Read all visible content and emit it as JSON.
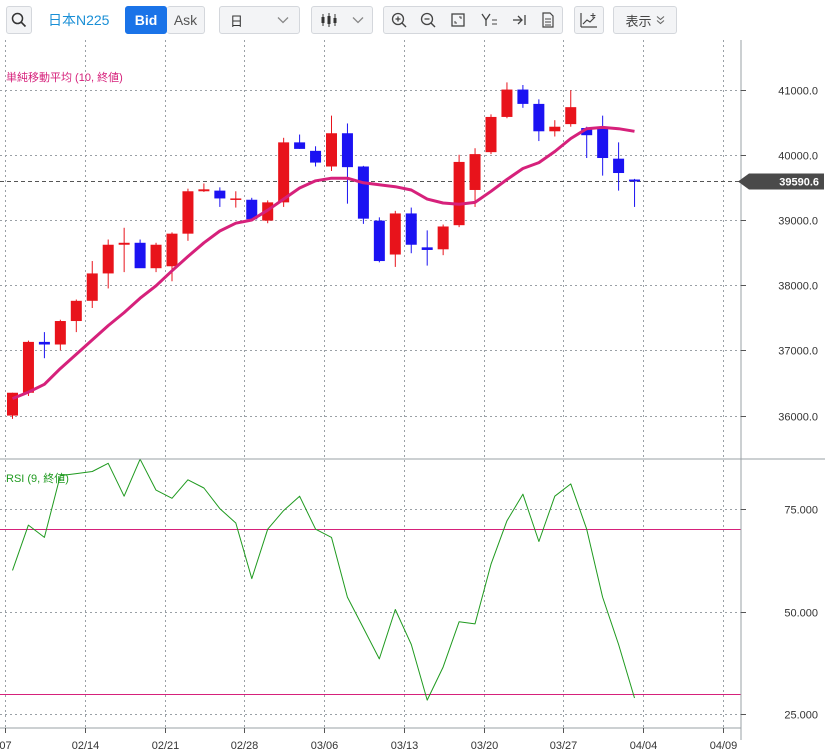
{
  "toolbar": {
    "symbol": "日本N225",
    "bid_label": "Bid",
    "ask_label": "Ask",
    "period_label": "日",
    "display_label": "表示",
    "icons": [
      "search-icon",
      "candlestick-icon",
      "zoom-in-icon",
      "zoom-out-icon",
      "fit-screen-icon",
      "y-axis-icon",
      "scroll-end-icon",
      "document-icon",
      "add-indicator-icon"
    ]
  },
  "colors": {
    "up": "#e8131b",
    "down": "#1b12f2",
    "ma": "#d6217b",
    "rsi": "#1f9a1f",
    "rsi_levels": "#d6217b",
    "current_price_tag": "#4a4a4a",
    "accent": "#1a73e8"
  },
  "chart_data": [
    {
      "type": "candlestick",
      "title": "",
      "indicator_label": "単純移動平均 (10, 終値)",
      "x_tick_labels": [
        "07",
        "02/14",
        "02/21",
        "02/28",
        "03/06",
        "03/13",
        "03/20",
        "03/27",
        "04/04",
        "04/09"
      ],
      "y_tick_labels": [
        "36000.0",
        "37000.0",
        "38000.0",
        "39000.0",
        "40000.0",
        "41000.0"
      ],
      "y_ticks": [
        36000,
        37000,
        38000,
        39000,
        40000,
        41000
      ],
      "ylim": [
        35380,
        41760
      ],
      "current_price": 39590.6,
      "current_price_label": "39590.6",
      "grid": true,
      "candles": [
        {
          "o": 36000,
          "h": 36350,
          "l": 35950,
          "c": 36350
        },
        {
          "o": 36350,
          "h": 37150,
          "l": 36300,
          "c": 37130
        },
        {
          "o": 37130,
          "h": 37280,
          "l": 36880,
          "c": 37090
        },
        {
          "o": 37090,
          "h": 37470,
          "l": 37000,
          "c": 37450
        },
        {
          "o": 37450,
          "h": 37780,
          "l": 37280,
          "c": 37760
        },
        {
          "o": 37760,
          "h": 38370,
          "l": 37650,
          "c": 38180
        },
        {
          "o": 38180,
          "h": 38700,
          "l": 37950,
          "c": 38620
        },
        {
          "o": 38620,
          "h": 38880,
          "l": 38200,
          "c": 38650
        },
        {
          "o": 38650,
          "h": 38700,
          "l": 38300,
          "c": 38260
        },
        {
          "o": 38260,
          "h": 38650,
          "l": 38200,
          "c": 38620
        },
        {
          "o": 38290,
          "h": 38810,
          "l": 38060,
          "c": 38790
        },
        {
          "o": 38790,
          "h": 39480,
          "l": 38680,
          "c": 39440
        },
        {
          "o": 39440,
          "h": 39560,
          "l": 39430,
          "c": 39470
        },
        {
          "o": 39450,
          "h": 39500,
          "l": 39200,
          "c": 39330
        },
        {
          "o": 39320,
          "h": 39440,
          "l": 39190,
          "c": 39330
        },
        {
          "o": 39310,
          "h": 39340,
          "l": 38980,
          "c": 39010
        },
        {
          "o": 38990,
          "h": 39300,
          "l": 38950,
          "c": 39270
        },
        {
          "o": 39270,
          "h": 40260,
          "l": 39200,
          "c": 40190
        },
        {
          "o": 40190,
          "h": 40310,
          "l": 40090,
          "c": 40090
        },
        {
          "o": 40060,
          "h": 40130,
          "l": 39820,
          "c": 39880
        },
        {
          "o": 39820,
          "h": 40600,
          "l": 39750,
          "c": 40330
        },
        {
          "o": 40330,
          "h": 40480,
          "l": 39250,
          "c": 39810
        },
        {
          "o": 39820,
          "h": 39830,
          "l": 38940,
          "c": 39020
        },
        {
          "o": 38990,
          "h": 39040,
          "l": 38350,
          "c": 38370
        },
        {
          "o": 38470,
          "h": 39140,
          "l": 38280,
          "c": 39100
        },
        {
          "o": 39100,
          "h": 39190,
          "l": 38490,
          "c": 38620
        },
        {
          "o": 38580,
          "h": 38840,
          "l": 38300,
          "c": 38540
        },
        {
          "o": 38550,
          "h": 38930,
          "l": 38460,
          "c": 38900
        },
        {
          "o": 38920,
          "h": 40000,
          "l": 38890,
          "c": 39890
        },
        {
          "o": 39460,
          "h": 40100,
          "l": 39200,
          "c": 40010
        },
        {
          "o": 40040,
          "h": 40620,
          "l": 40010,
          "c": 40580
        },
        {
          "o": 40580,
          "h": 41110,
          "l": 40560,
          "c": 41000
        },
        {
          "o": 41000,
          "h": 41070,
          "l": 40720,
          "c": 40780
        },
        {
          "o": 40780,
          "h": 40850,
          "l": 40210,
          "c": 40360
        },
        {
          "o": 40360,
          "h": 40530,
          "l": 40280,
          "c": 40430
        },
        {
          "o": 40470,
          "h": 40990,
          "l": 40430,
          "c": 40730
        },
        {
          "o": 40410,
          "h": 40430,
          "l": 39950,
          "c": 40300
        },
        {
          "o": 40420,
          "h": 40600,
          "l": 39680,
          "c": 39950
        },
        {
          "o": 39940,
          "h": 40190,
          "l": 39450,
          "c": 39720
        },
        {
          "o": 39620,
          "h": 39630,
          "l": 39200,
          "c": 39590.6
        }
      ],
      "series": [
        {
          "name": "単純移動平均 (10, 終値)",
          "values": [
            36260,
            36360,
            36480,
            36720,
            36940,
            37160,
            37380,
            37580,
            37800,
            37990,
            38220,
            38440,
            38650,
            38830,
            38950,
            39000,
            39150,
            39320,
            39490,
            39600,
            39640,
            39640,
            39570,
            39540,
            39510,
            39460,
            39320,
            39260,
            39240,
            39270,
            39440,
            39620,
            39790,
            39880,
            40050,
            40250,
            40400,
            40420,
            40400,
            40360
          ]
        }
      ]
    },
    {
      "type": "line",
      "title": "",
      "indicator_label": "RSI (9, 終値)",
      "y_tick_labels": [
        "25.000",
        "50.000",
        "75.000"
      ],
      "y_ticks": [
        25,
        50,
        75
      ],
      "ylim": [
        22.2,
        86.8
      ],
      "levels": [
        70,
        30
      ],
      "grid": true,
      "series": [
        {
          "name": "RSI (9, 終値)",
          "values": [
            60,
            71,
            68,
            83,
            83.5,
            84,
            86,
            78,
            87,
            79.5,
            77.5,
            82,
            80,
            75,
            71.5,
            58,
            70,
            74.5,
            78,
            70,
            68,
            53.5,
            46,
            38.5,
            50.5,
            42,
            28.5,
            36.5,
            47.5,
            47,
            61.5,
            72,
            78.5,
            67,
            78,
            81,
            70,
            53.5,
            42,
            29
          ]
        }
      ]
    }
  ]
}
